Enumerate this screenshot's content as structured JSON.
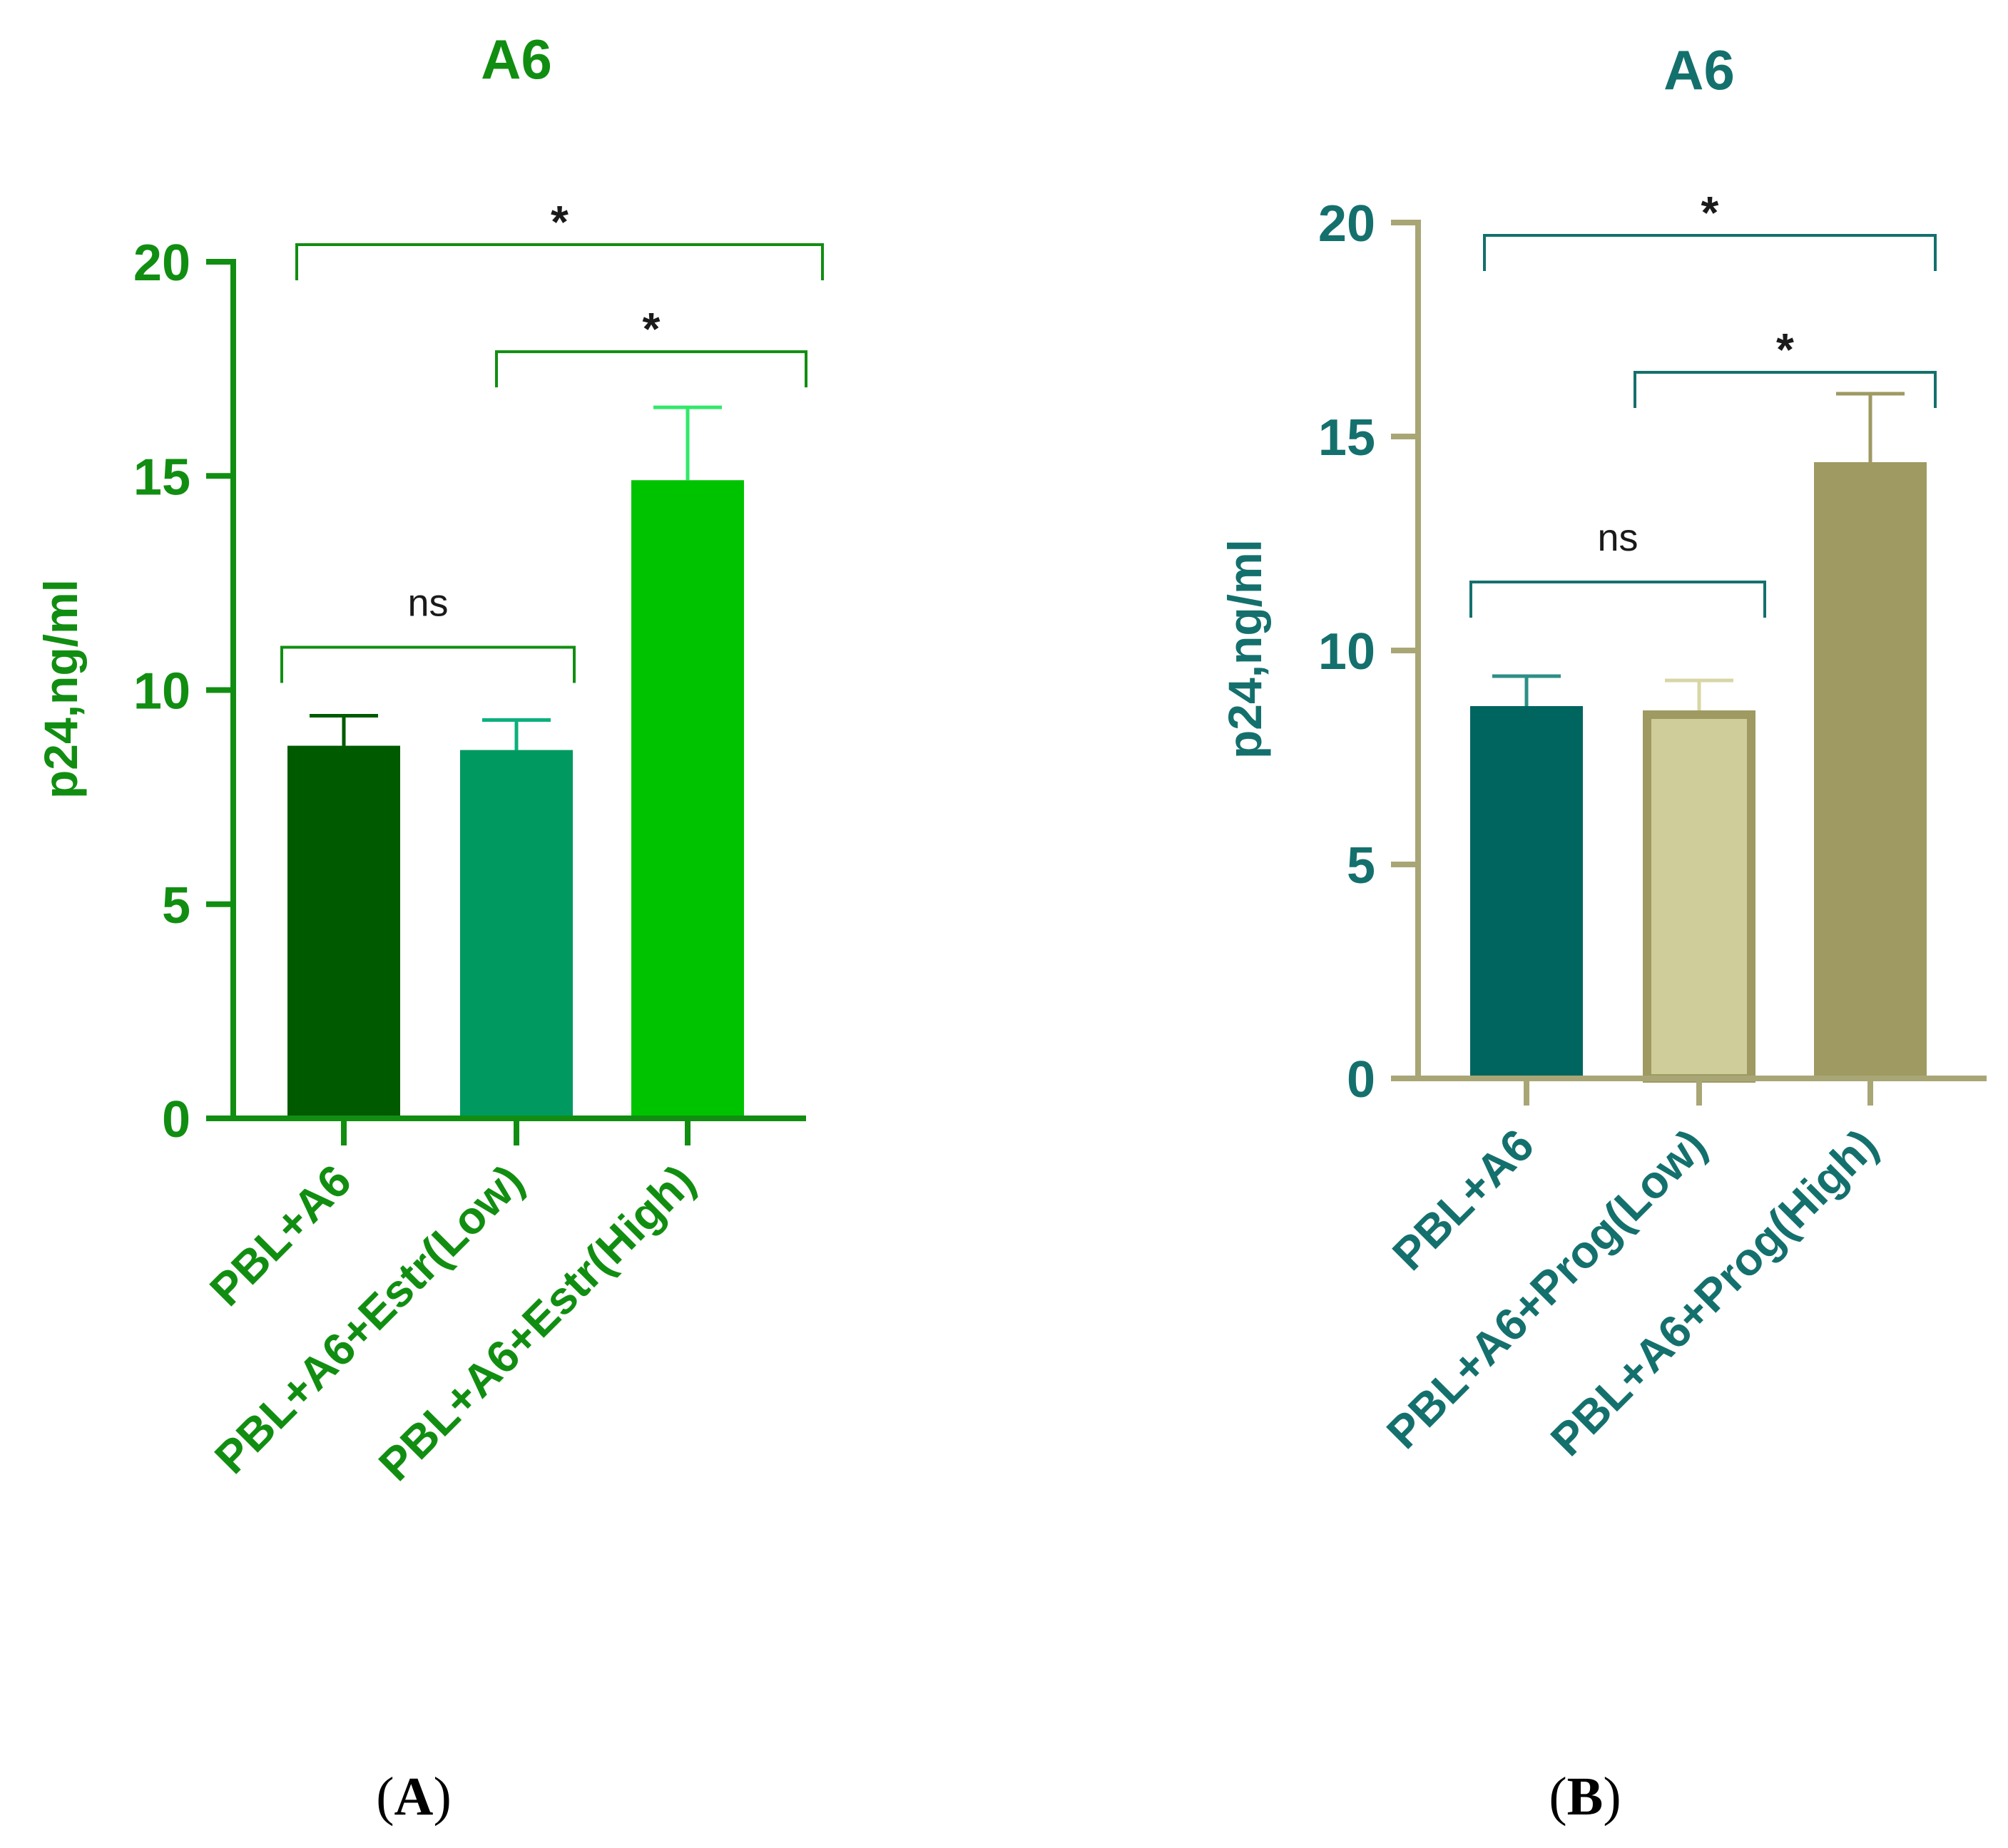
{
  "figure": {
    "panels": [
      {
        "open": "(",
        "letter": "A",
        "close": ")"
      },
      {
        "open": "(",
        "letter": "B",
        "close": ")"
      }
    ]
  },
  "chart_data": [
    {
      "type": "bar",
      "title": "A6",
      "xlabel": "",
      "ylabel": "p24,ng/ml",
      "ylim": [
        0,
        20
      ],
      "yticks": [
        0,
        5,
        10,
        15,
        20
      ],
      "categories": [
        "PBL+A6",
        "PBL+A6+Estr(Low)",
        "PBL+A6+Estr(High)"
      ],
      "values": [
        8.7,
        8.6,
        14.9
      ],
      "errors": [
        0.7,
        0.7,
        1.7
      ],
      "colors": {
        "axis": "#118E11",
        "text": "#118E11",
        "bars": [
          "#005A00",
          "#009960",
          "#00C300"
        ],
        "bar_edges": [
          "#005A00",
          "#009960",
          "#00C300"
        ],
        "error_bars": [
          "#005A00",
          "#0BB07D",
          "#33E86A"
        ],
        "brackets": "#118E11",
        "sig_text": "#1A1A1A"
      },
      "significance": [
        {
          "from": 0,
          "to": 1,
          "label": "ns",
          "y": 11.0
        },
        {
          "from": 1,
          "to": 2,
          "label": "*",
          "y": 17.9
        },
        {
          "from": 0,
          "to": 2,
          "label": "*",
          "y": 20.4
        }
      ]
    },
    {
      "type": "bar",
      "title": "A6",
      "xlabel": "",
      "ylabel": "p24,ng/ml",
      "ylim": [
        0,
        20
      ],
      "yticks": [
        0,
        5,
        10,
        15,
        20
      ],
      "categories": [
        "PBL+A6",
        "PBL+A6+Prog(Low)",
        "PBL+A6+Prog(High)"
      ],
      "values": [
        8.7,
        8.6,
        14.4
      ],
      "errors": [
        0.7,
        0.7,
        1.6
      ],
      "colors": {
        "axis": "#A9A676",
        "text": "#14706D",
        "bars": [
          "#00655F",
          "#CFCD9A",
          "#9E9A62"
        ],
        "bar_edges": [
          "#00655F",
          "#9E9A62",
          "#9E9A62"
        ],
        "error_bars": [
          "#2E8F87",
          "#D9D6A6",
          "#9E9A62"
        ],
        "brackets": "#14706D",
        "sig_text": "#1A1A1A"
      },
      "significance": [
        {
          "from": 0,
          "to": 1,
          "label": "ns",
          "y": 11.6
        },
        {
          "from": 1,
          "to": 2,
          "label": "*",
          "y": 16.5
        },
        {
          "from": 0,
          "to": 2,
          "label": "*",
          "y": 19.7
        }
      ]
    }
  ]
}
